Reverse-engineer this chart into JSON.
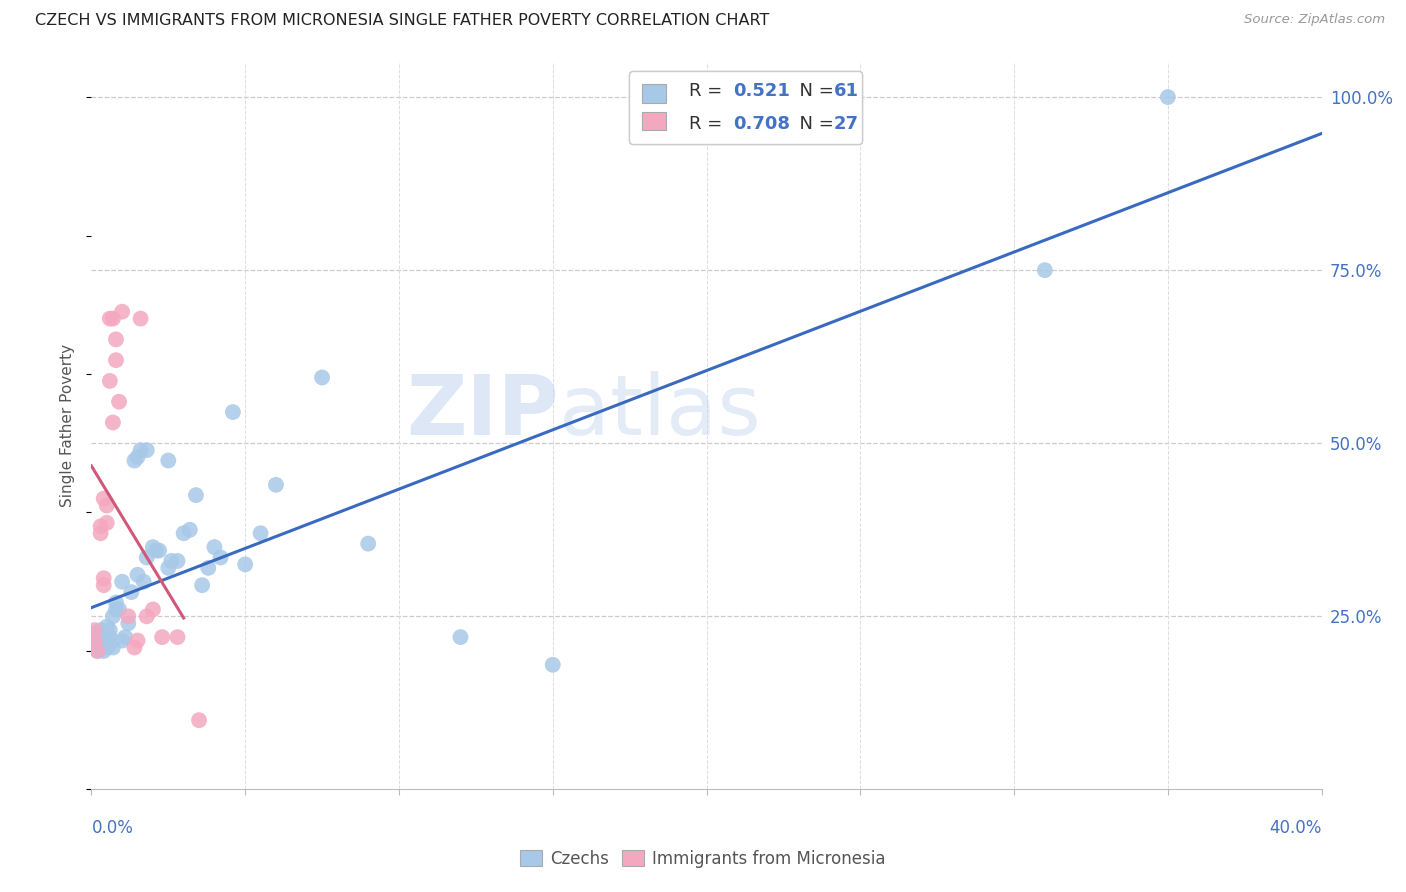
{
  "title": "CZECH VS IMMIGRANTS FROM MICRONESIA SINGLE FATHER POVERTY CORRELATION CHART",
  "source": "Source: ZipAtlas.com",
  "ylabel": "Single Father Poverty",
  "R1": "0.521",
  "N1": "61",
  "R2": "0.708",
  "N2": "27",
  "color_blue_scatter": "#a8c8e8",
  "color_pink_scatter": "#f4a8c0",
  "color_blue_line": "#3a6abf",
  "color_pink_line": "#d05878",
  "color_blue_text": "#4472c4",
  "color_axis_text": "#4472c4",
  "legend_label1": "Czechs",
  "legend_label2": "Immigrants from Micronesia",
  "watermark_zip": "ZIP",
  "watermark_atlas": "atlas",
  "xmin": 0.0,
  "xmax": 0.4,
  "ymin": 0.0,
  "ymax": 1.05,
  "yticks": [
    0.25,
    0.5,
    0.75,
    1.0
  ],
  "ytick_labels": [
    "25.0%",
    "50.0%",
    "75.0%",
    "100.0%"
  ],
  "czechs_x": [
    0.001,
    0.001,
    0.001,
    0.002,
    0.002,
    0.002,
    0.002,
    0.003,
    0.003,
    0.003,
    0.003,
    0.004,
    0.004,
    0.004,
    0.005,
    0.005,
    0.005,
    0.006,
    0.006,
    0.006,
    0.007,
    0.007,
    0.008,
    0.008,
    0.009,
    0.01,
    0.01,
    0.011,
    0.012,
    0.013,
    0.014,
    0.015,
    0.015,
    0.016,
    0.017,
    0.018,
    0.018,
    0.02,
    0.021,
    0.022,
    0.025,
    0.025,
    0.026,
    0.028,
    0.03,
    0.032,
    0.034,
    0.036,
    0.038,
    0.04,
    0.042,
    0.046,
    0.05,
    0.055,
    0.06,
    0.075,
    0.09,
    0.12,
    0.15,
    0.31,
    0.35
  ],
  "czechs_y": [
    0.205,
    0.215,
    0.225,
    0.2,
    0.21,
    0.215,
    0.225,
    0.205,
    0.21,
    0.22,
    0.23,
    0.2,
    0.21,
    0.225,
    0.205,
    0.215,
    0.235,
    0.21,
    0.22,
    0.23,
    0.205,
    0.25,
    0.26,
    0.27,
    0.26,
    0.215,
    0.3,
    0.22,
    0.24,
    0.285,
    0.475,
    0.31,
    0.48,
    0.49,
    0.3,
    0.335,
    0.49,
    0.35,
    0.345,
    0.345,
    0.32,
    0.475,
    0.33,
    0.33,
    0.37,
    0.375,
    0.425,
    0.295,
    0.32,
    0.35,
    0.335,
    0.545,
    0.325,
    0.37,
    0.44,
    0.595,
    0.355,
    0.22,
    0.18,
    0.75,
    1.0
  ],
  "micronesia_x": [
    0.001,
    0.001,
    0.002,
    0.003,
    0.003,
    0.004,
    0.004,
    0.004,
    0.005,
    0.005,
    0.006,
    0.006,
    0.007,
    0.007,
    0.008,
    0.008,
    0.009,
    0.01,
    0.012,
    0.014,
    0.015,
    0.016,
    0.018,
    0.02,
    0.023,
    0.028,
    0.035
  ],
  "micronesia_y": [
    0.215,
    0.23,
    0.2,
    0.37,
    0.38,
    0.295,
    0.305,
    0.42,
    0.385,
    0.41,
    0.59,
    0.68,
    0.53,
    0.68,
    0.62,
    0.65,
    0.56,
    0.69,
    0.25,
    0.205,
    0.215,
    0.68,
    0.25,
    0.26,
    0.22,
    0.22,
    0.1
  ],
  "pink_line_x0": 0.0,
  "pink_line_x1": 0.03,
  "blue_line_x0": 0.0,
  "blue_line_x1": 0.4
}
